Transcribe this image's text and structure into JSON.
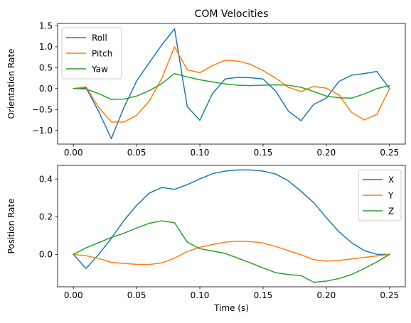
{
  "chart_data": [
    {
      "type": "line",
      "title": "COM Velocities",
      "xlabel": "",
      "ylabel": "Orientation Rate",
      "xlim": [
        -0.0125,
        0.2625
      ],
      "ylim": [
        -1.33,
        1.56
      ],
      "xticks": [
        0.0,
        0.05,
        0.1,
        0.15,
        0.2,
        0.25
      ],
      "xtick_labels": [
        "0.00",
        "0.05",
        "0.10",
        "0.15",
        "0.20",
        "0.25"
      ],
      "yticks": [
        -1.0,
        -0.5,
        0.0,
        0.5,
        1.0,
        1.5
      ],
      "ytick_labels": [
        "−1.0",
        "−0.5",
        "0.0",
        "0.5",
        "1.0",
        "1.5"
      ],
      "legend_position": "upper-left",
      "x": [
        0.0,
        0.01,
        0.02,
        0.03,
        0.04,
        0.05,
        0.06,
        0.07,
        0.08,
        0.09,
        0.1,
        0.11,
        0.12,
        0.13,
        0.14,
        0.15,
        0.16,
        0.17,
        0.18,
        0.19,
        0.2,
        0.21,
        0.22,
        0.23,
        0.24,
        0.25
      ],
      "series": [
        {
          "name": "Roll",
          "color": "#1f77b4",
          "values": [
            0.0,
            0.02,
            -0.55,
            -1.2,
            -0.45,
            0.18,
            0.62,
            1.05,
            1.43,
            -0.43,
            -0.76,
            -0.12,
            0.23,
            0.27,
            0.26,
            0.23,
            -0.06,
            -0.54,
            -0.77,
            -0.38,
            -0.23,
            0.17,
            0.32,
            0.36,
            0.41,
            0.0
          ]
        },
        {
          "name": "Pitch",
          "color": "#ff7f0e",
          "values": [
            0.0,
            0.04,
            -0.45,
            -0.8,
            -0.8,
            -0.64,
            -0.3,
            0.25,
            1.0,
            0.45,
            0.38,
            0.55,
            0.68,
            0.66,
            0.58,
            0.43,
            0.25,
            0.03,
            -0.07,
            0.05,
            0.01,
            -0.15,
            -0.57,
            -0.75,
            -0.62,
            0.0
          ]
        },
        {
          "name": "Yaw",
          "color": "#2ca02c",
          "values": [
            0.0,
            -0.01,
            -0.12,
            -0.26,
            -0.25,
            -0.18,
            -0.05,
            0.12,
            0.36,
            0.28,
            0.21,
            0.16,
            0.11,
            0.08,
            0.07,
            0.08,
            0.09,
            0.08,
            0.03,
            -0.07,
            -0.18,
            -0.22,
            -0.23,
            -0.13,
            0.0,
            0.07
          ]
        }
      ]
    },
    {
      "type": "line",
      "title": "",
      "xlabel": "Time (s)",
      "ylabel": "Position Rate",
      "xlim": [
        -0.0125,
        0.2625
      ],
      "ylim": [
        -0.172,
        0.472
      ],
      "xticks": [
        0.0,
        0.05,
        0.1,
        0.15,
        0.2,
        0.25
      ],
      "xtick_labels": [
        "0.00",
        "0.05",
        "0.10",
        "0.15",
        "0.20",
        "0.25"
      ],
      "yticks": [
        0.0,
        0.2,
        0.4
      ],
      "ytick_labels": [
        "0.0",
        "0.2",
        "0.4"
      ],
      "legend_position": "upper-right",
      "x": [
        0.0,
        0.01,
        0.02,
        0.03,
        0.04,
        0.05,
        0.06,
        0.07,
        0.08,
        0.09,
        0.1,
        0.11,
        0.12,
        0.13,
        0.14,
        0.15,
        0.16,
        0.17,
        0.18,
        0.19,
        0.2,
        0.21,
        0.22,
        0.23,
        0.24,
        0.25
      ],
      "series": [
        {
          "name": "X",
          "color": "#1f77b4",
          "values": [
            0.0,
            -0.075,
            0.0,
            0.085,
            0.18,
            0.26,
            0.325,
            0.355,
            0.345,
            0.37,
            0.4,
            0.428,
            0.442,
            0.448,
            0.448,
            0.442,
            0.426,
            0.39,
            0.335,
            0.275,
            0.195,
            0.12,
            0.062,
            0.02,
            0.0,
            0.0
          ]
        },
        {
          "name": "Y",
          "color": "#ff7f0e",
          "values": [
            0.0,
            -0.007,
            -0.022,
            -0.042,
            -0.048,
            -0.053,
            -0.054,
            -0.045,
            -0.02,
            0.015,
            0.038,
            0.052,
            0.065,
            0.07,
            0.068,
            0.06,
            0.042,
            0.02,
            -0.002,
            -0.028,
            -0.036,
            -0.032,
            -0.024,
            -0.016,
            -0.008,
            0.0
          ]
        },
        {
          "name": "Z",
          "color": "#2ca02c",
          "values": [
            0.0,
            0.035,
            0.062,
            0.09,
            0.112,
            0.14,
            0.165,
            0.178,
            0.168,
            0.065,
            0.03,
            0.018,
            0.005,
            -0.02,
            -0.045,
            -0.072,
            -0.097,
            -0.107,
            -0.112,
            -0.148,
            -0.142,
            -0.128,
            -0.107,
            -0.075,
            -0.04,
            0.0
          ]
        }
      ]
    }
  ]
}
